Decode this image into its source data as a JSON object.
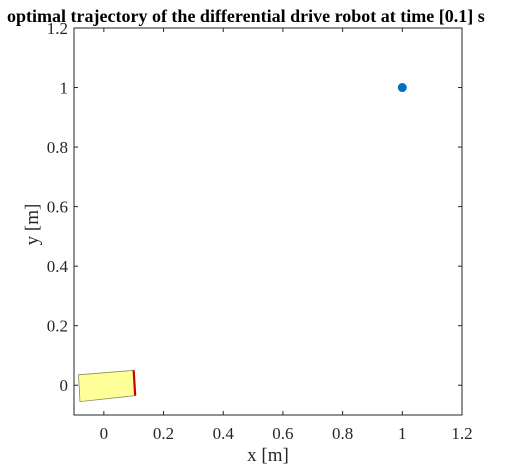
{
  "chart_data": {
    "type": "scatter",
    "title": "optimal trajectory of the differential drive robot at time [0.1] s",
    "xlabel": "x [m]",
    "ylabel": "y [m]",
    "xlim": [
      -0.1,
      1.2
    ],
    "ylim": [
      -0.1,
      1.2
    ],
    "x_ticks": [
      0,
      0.2,
      0.4,
      0.6,
      0.8,
      1,
      1.2
    ],
    "x_tick_labels": [
      "0",
      "0.2",
      "0.4",
      "0.6",
      "0.8",
      "1",
      "1.2"
    ],
    "y_ticks": [
      0,
      0.2,
      0.4,
      0.6,
      0.8,
      1,
      1.2
    ],
    "y_tick_labels": [
      "0",
      "0.2",
      "0.4",
      "0.6",
      "0.8",
      "1",
      "1.2"
    ],
    "grid": false,
    "goal_point": {
      "x": 1.0,
      "y": 1.0,
      "color": "#0072BD"
    },
    "robot": {
      "body_corners": [
        {
          "x": -0.085,
          "y": 0.035
        },
        {
          "x": 0.1,
          "y": 0.05
        },
        {
          "x": 0.105,
          "y": -0.035
        },
        {
          "x": -0.08,
          "y": -0.055
        }
      ],
      "front_edge": [
        {
          "x": 0.1,
          "y": 0.05
        },
        {
          "x": 0.105,
          "y": -0.035
        }
      ],
      "body_color": "#FFFF99",
      "front_color": "#CC0000"
    }
  }
}
